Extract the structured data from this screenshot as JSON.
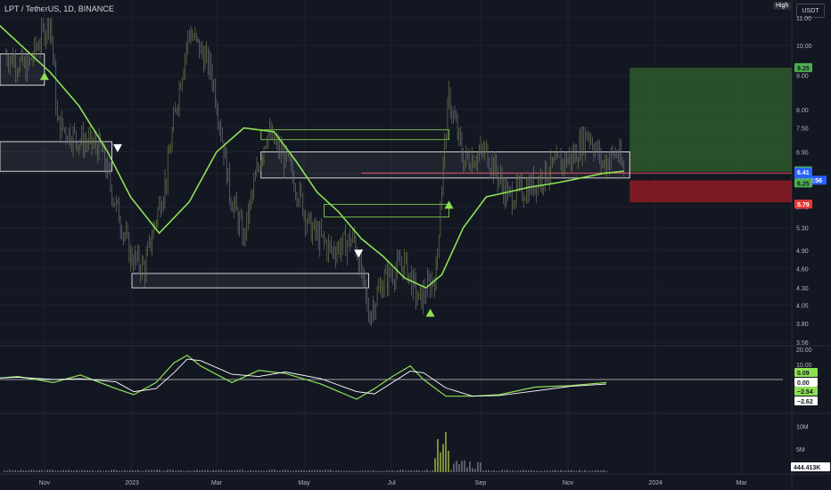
{
  "header": {
    "symbol": "LPT / TetherUS, 1D, BINANCE",
    "high_badge": "High",
    "currency_button": "USDT"
  },
  "colors": {
    "background": "#131722",
    "grid": "#1e222d",
    "ma_line": "#8ee053",
    "up_candle": "#6a7a40",
    "down_candle": "#6b6f7a",
    "profit_zone": "#2e5a2a",
    "loss_zone": "#8e1b22",
    "last_price_tag": "#2962ff"
  },
  "chart_data": [
    {
      "type": "line",
      "title": "",
      "log_scale": true,
      "ylim": [
        3.56,
        11.0
      ],
      "y_ticks": [
        11.0,
        10.0,
        9.0,
        8.0,
        7.5,
        6.9,
        6.4,
        5.7,
        5.3,
        4.9,
        4.6,
        4.3,
        4.05,
        3.8,
        3.56
      ],
      "y_tick_labels": [
        "11.00",
        "10.00",
        "9.00",
        "8.00",
        "7.50",
        "6.90",
        "6.40",
        "5.70",
        "5.30",
        "4.90",
        "4.60",
        "4.30",
        "4.05",
        "3.80",
        "3.56"
      ],
      "x_tick_labels": [
        "Nov",
        "2023",
        "Mar",
        "May",
        "Jul",
        "Sep",
        "Nov",
        "2024",
        "Mar"
      ],
      "grid": true,
      "price_path": [
        [
          "2022-10-05",
          9.7
        ],
        [
          "2022-10-20",
          9.2
        ],
        [
          "2022-11-05",
          11.0
        ],
        [
          "2022-11-10",
          7.6
        ],
        [
          "2022-11-25",
          7.2
        ],
        [
          "2022-12-10",
          7.0
        ],
        [
          "2022-12-20",
          5.8
        ],
        [
          "2022-12-31",
          4.8
        ],
        [
          "2023-01-10",
          4.6
        ],
        [
          "2023-01-25",
          6.3
        ],
        [
          "2023-02-10",
          10.5
        ],
        [
          "2023-02-25",
          9.2
        ],
        [
          "2023-03-10",
          6.0
        ],
        [
          "2023-03-20",
          5.1
        ],
        [
          "2023-04-05",
          7.4
        ],
        [
          "2023-04-20",
          6.6
        ],
        [
          "2023-05-05",
          5.3
        ],
        [
          "2023-05-20",
          4.9
        ],
        [
          "2023-06-05",
          5.1
        ],
        [
          "2023-06-15",
          3.9
        ],
        [
          "2023-06-25",
          4.4
        ],
        [
          "2023-07-10",
          4.7
        ],
        [
          "2023-07-20",
          4.1
        ],
        [
          "2023-08-01",
          4.5
        ],
        [
          "2023-08-10",
          8.3
        ],
        [
          "2023-08-20",
          6.7
        ],
        [
          "2023-09-05",
          6.9
        ],
        [
          "2023-09-20",
          5.9
        ],
        [
          "2023-10-05",
          6.1
        ],
        [
          "2023-10-20",
          6.5
        ],
        [
          "2023-11-05",
          6.8
        ],
        [
          "2023-11-15",
          7.4
        ],
        [
          "2023-11-25",
          6.6
        ],
        [
          "2023-12-05",
          6.9
        ],
        [
          "2023-12-10",
          6.41
        ]
      ],
      "ma_path": [
        [
          "2022-09-25",
          11.0
        ],
        [
          "2022-10-20",
          9.8
        ],
        [
          "2022-11-05",
          9.1
        ],
        [
          "2022-11-25",
          8.1
        ],
        [
          "2022-12-15",
          6.9
        ],
        [
          "2022-12-31",
          5.9
        ],
        [
          "2023-01-20",
          5.2
        ],
        [
          "2023-02-10",
          5.8
        ],
        [
          "2023-03-01",
          6.9
        ],
        [
          "2023-03-20",
          7.5
        ],
        [
          "2023-04-10",
          7.4
        ],
        [
          "2023-04-25",
          6.7
        ],
        [
          "2023-05-10",
          6.0
        ],
        [
          "2023-05-25",
          5.6
        ],
        [
          "2023-06-10",
          5.1
        ],
        [
          "2023-06-25",
          4.8
        ],
        [
          "2023-07-10",
          4.45
        ],
        [
          "2023-07-25",
          4.3
        ],
        [
          "2023-08-05",
          4.5
        ],
        [
          "2023-08-20",
          5.3
        ],
        [
          "2023-09-05",
          5.9
        ],
        [
          "2023-09-20",
          6.0
        ],
        [
          "2023-10-05",
          6.1
        ],
        [
          "2023-10-25",
          6.2
        ],
        [
          "2023-11-10",
          6.3
        ],
        [
          "2023-11-25",
          6.4
        ],
        [
          "2023-12-10",
          6.45
        ]
      ],
      "levels": [
        {
          "label": "9.25",
          "value": 9.25,
          "color": "#4caf50"
        },
        {
          "label": "6.44",
          "value": 6.44,
          "color": "#4caf50"
        },
        {
          "label": "6.41",
          "value": 6.41,
          "color": "#2962ff"
        },
        {
          "label": "14:14:56",
          "value": 6.34,
          "color": "#2962ff"
        },
        {
          "label": "6.25",
          "value": 6.25,
          "color": "#4caf50"
        },
        {
          "label": "5.79",
          "value": 5.79,
          "color": "#e53935"
        }
      ],
      "signals": [
        {
          "date": "2022-11-01",
          "price": 9.0,
          "direction": "up"
        },
        {
          "date": "2022-12-22",
          "price": 7.0,
          "direction": "down"
        },
        {
          "date": "2023-06-08",
          "price": 4.85,
          "direction": "down"
        },
        {
          "date": "2023-07-28",
          "price": 3.95,
          "direction": "up"
        },
        {
          "date": "2023-08-10",
          "price": 5.75,
          "direction": "up"
        }
      ]
    },
    {
      "type": "line",
      "title": "",
      "y_tick_labels": [
        "20.00",
        "10.00",
        "0.00"
      ],
      "last_values": [
        {
          "label": "0.09",
          "color": "#8ee053"
        },
        {
          "label": "0.00",
          "color": "#ffffff"
        },
        {
          "label": "−2.54",
          "color": "#8ee053"
        },
        {
          "label": "−2.62",
          "color": "#ffffff"
        }
      ]
    },
    {
      "type": "bar",
      "title": "",
      "y_tick_labels": [
        "10M",
        "5M"
      ],
      "last_value_label": "444.413K"
    }
  ]
}
